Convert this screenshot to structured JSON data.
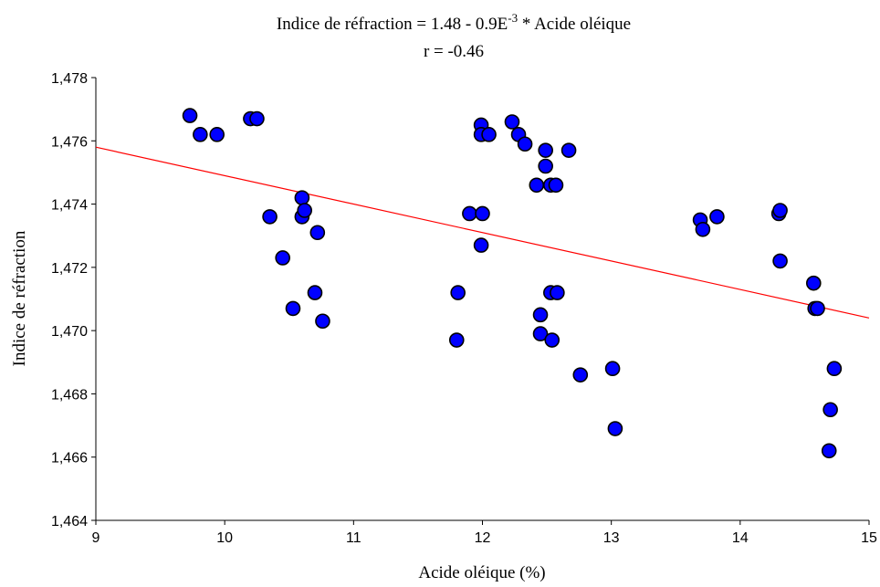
{
  "chart_data": {
    "type": "scatter",
    "title": "Indice de réfraction = 1.48 - 0.9E",
    "title_superscript": "-3",
    "title_suffix": " * Acide oléique",
    "subtitle": "r = -0.46",
    "xlabel": "Acide oléique (%)",
    "ylabel": "Indice de réfraction",
    "xlim": [
      9,
      15
    ],
    "ylim": [
      1.464,
      1.478
    ],
    "x_ticks": [
      9,
      10,
      11,
      12,
      13,
      14,
      15
    ],
    "x_tick_labels": [
      "9",
      "10",
      "11",
      "12",
      "13",
      "14",
      "15"
    ],
    "y_ticks": [
      1.464,
      1.466,
      1.468,
      1.47,
      1.472,
      1.474,
      1.476,
      1.478
    ],
    "y_tick_labels": [
      "1,464",
      "1,466",
      "1,468",
      "1,470",
      "1,472",
      "1,474",
      "1,476",
      "1,478"
    ],
    "grid": false,
    "marker_color": "#0000ff",
    "line_color": "#ff0000",
    "regression": {
      "x": [
        9,
        15
      ],
      "y": [
        1.4758,
        1.4704
      ]
    },
    "x": [
      9.73,
      9.81,
      9.94,
      10.2,
      10.25,
      10.35,
      10.45,
      10.53,
      10.6,
      10.6,
      10.62,
      10.7,
      10.72,
      10.76,
      11.8,
      11.81,
      11.9,
      11.99,
      11.99,
      11.99,
      12.0,
      12.05,
      12.23,
      12.28,
      12.33,
      12.42,
      12.45,
      12.45,
      12.49,
      12.49,
      12.53,
      12.53,
      12.54,
      12.57,
      12.58,
      12.67,
      12.76,
      13.01,
      13.03,
      13.69,
      13.71,
      13.82,
      14.3,
      14.31,
      14.31,
      14.57,
      14.58,
      14.6,
      14.69,
      14.7,
      14.73
    ],
    "y": [
      1.4768,
      1.4762,
      1.4762,
      1.4767,
      1.4767,
      1.4736,
      1.4723,
      1.4707,
      1.4742,
      1.4736,
      1.4738,
      1.4712,
      1.4731,
      1.4703,
      1.4697,
      1.4712,
      1.4737,
      1.4765,
      1.4762,
      1.4727,
      1.4737,
      1.4762,
      1.4766,
      1.4762,
      1.4759,
      1.4746,
      1.4705,
      1.4699,
      1.4757,
      1.4752,
      1.4746,
      1.4712,
      1.4697,
      1.4746,
      1.4712,
      1.4757,
      1.4686,
      1.4688,
      1.4669,
      1.4735,
      1.4732,
      1.4736,
      1.4737,
      1.4738,
      1.4722,
      1.4715,
      1.4707,
      1.4707,
      1.4662,
      1.4675,
      1.4688
    ]
  }
}
